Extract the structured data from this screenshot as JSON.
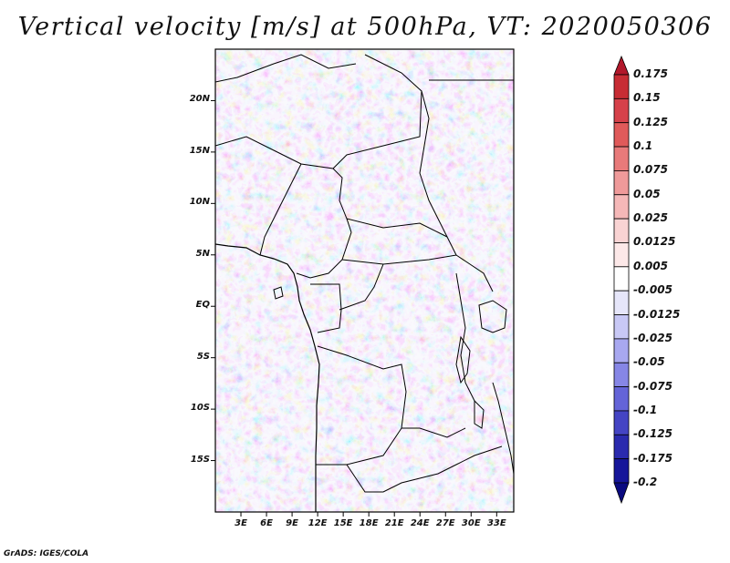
{
  "title": "Vertical velocity [m/s] at 500hPa, VT: 2020050306",
  "credit": "GrADS: IGES/COLA",
  "map": {
    "variable": "vertical velocity",
    "level": "500hPa",
    "units": "m/s",
    "valid_time": "2020050306",
    "lat_range": [
      -20,
      25
    ],
    "lon_range": [
      0,
      35
    ],
    "lat_labels": [
      "20N",
      "15N",
      "10N",
      "5N",
      "EQ",
      "5S",
      "10S",
      "15S"
    ],
    "lat_values": [
      20,
      15,
      10,
      5,
      0,
      -5,
      -10,
      -15
    ],
    "lon_labels": [
      "3E",
      "6E",
      "9E",
      "12E",
      "15E",
      "18E",
      "21E",
      "24E",
      "27E",
      "30E",
      "33E"
    ],
    "lon_values": [
      3,
      6,
      9,
      12,
      15,
      18,
      21,
      24,
      27,
      30,
      33
    ]
  },
  "colorbar": {
    "labels": [
      "0.175",
      "0.15",
      "0.125",
      "0.1",
      "0.075",
      "0.05",
      "0.025",
      "0.0125",
      "0.005",
      "-0.005",
      "-0.0125",
      "-0.025",
      "-0.05",
      "-0.075",
      "-0.1",
      "-0.125",
      "-0.175",
      "-0.2"
    ],
    "colors": [
      "#b2182b",
      "#c72c34",
      "#d6414a",
      "#e05a5a",
      "#e87a7a",
      "#ef9a9a",
      "#f5b8b8",
      "#f9d3d3",
      "#fce8e8",
      "#ffffff",
      "#e6e6fa",
      "#c8c8f5",
      "#a8a8f0",
      "#8686e6",
      "#6464d8",
      "#4444c4",
      "#2a2aae",
      "#16169a",
      "#0a0a80"
    ]
  }
}
